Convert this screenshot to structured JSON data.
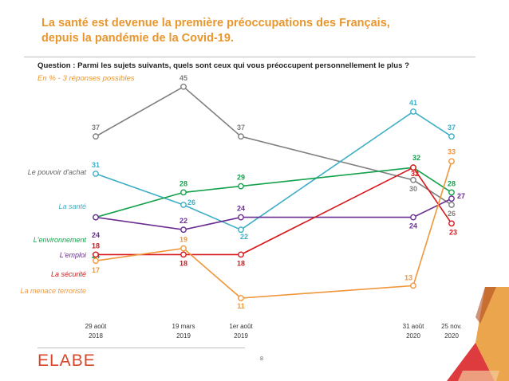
{
  "title_line1": "La santé est devenue la première préoccupations des Français,",
  "title_line2": "depuis la pandémie de la Covid-19.",
  "question": "Question : Parmi les sujets suivants, quels sont ceux qui vous préoccupent personnellement le plus ?",
  "subquestion": "En  % - 3 réponses possibles",
  "page_number": "8",
  "logo_text": "ELABE",
  "colors": {
    "accent": "#e8962e",
    "pouvoir": "#7f7f7f",
    "sante": "#3eaec6",
    "environnement": "#13a14a",
    "emploi": "#6a2d91",
    "securite": "#d7191c",
    "terrorisme": "#f0963a",
    "logo": "#d9452b"
  },
  "chart_data": {
    "type": "line",
    "x": [
      {
        "line1": "29 août",
        "line2": "2018"
      },
      {
        "line1": "19 mars",
        "line2": "2019"
      },
      {
        "line1": "1er  août",
        "line2": "2019"
      },
      {
        "line1": "31 août",
        "line2": "2020"
      },
      {
        "line1": "25 nov.",
        "line2": "2020"
      }
    ],
    "series": [
      {
        "key": "pouvoir",
        "name": "Le pouvoir d'achat",
        "values": [
          37,
          45,
          37,
          30,
          26
        ],
        "labels": [
          "37",
          "45",
          "37",
          "30",
          "26"
        ]
      },
      {
        "key": "sante",
        "name": "La santé",
        "values": [
          31,
          26,
          22,
          41,
          37
        ],
        "labels": [
          "31",
          "26",
          "22",
          "41",
          "37"
        ]
      },
      {
        "key": "environnement",
        "name": "L'environnement",
        "values": [
          24,
          28,
          29,
          32,
          28
        ],
        "labels": [
          "24",
          "28",
          "29",
          "32",
          "28"
        ]
      },
      {
        "key": "emploi",
        "name": "L'emploi",
        "values": [
          24,
          22,
          24,
          24,
          27
        ],
        "labels": [
          "24",
          "22",
          "24",
          "24",
          "27"
        ]
      },
      {
        "key": "securite",
        "name": "La sécurité",
        "values": [
          18,
          18,
          18,
          32,
          23
        ],
        "labels": [
          "18",
          "18",
          "18",
          "32",
          "23"
        ]
      },
      {
        "key": "terrorisme",
        "name": "La menace terroriste",
        "values": [
          17,
          19,
          11,
          13,
          33
        ],
        "labels": [
          "17",
          "19",
          "11",
          "13",
          "33"
        ]
      }
    ]
  }
}
